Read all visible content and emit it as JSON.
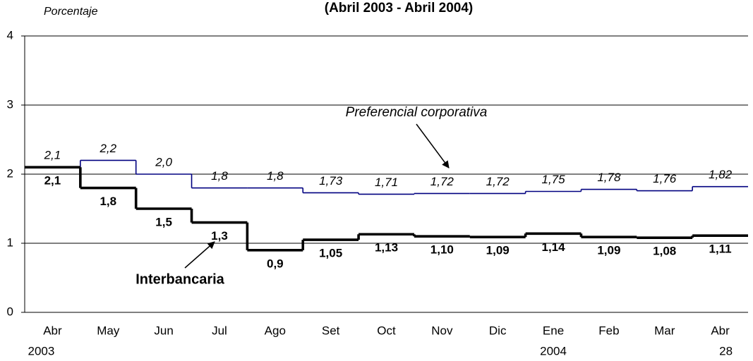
{
  "chart_data": {
    "type": "step-line",
    "title": "(Abril 2003 - Abril 2004)",
    "y_label": "Porcentaje",
    "categories": [
      "Abr",
      "May",
      "Jun",
      "Jul",
      "Ago",
      "Set",
      "Oct",
      "Nov",
      "Dic",
      "Ene",
      "Feb",
      "Mar",
      "Abr"
    ],
    "category_sublabels": [
      "2003",
      null,
      null,
      null,
      null,
      null,
      null,
      null,
      null,
      "2004",
      null,
      null,
      "28"
    ],
    "ylim": [
      0,
      4
    ],
    "yticks": [
      0,
      1,
      2,
      3,
      4
    ],
    "grid": true,
    "series": [
      {
        "name": "Preferencial corporativa",
        "color": "#000080",
        "values": [
          2.1,
          2.2,
          2.0,
          1.8,
          1.8,
          1.73,
          1.71,
          1.72,
          1.72,
          1.75,
          1.78,
          1.76,
          1.82
        ],
        "value_labels": [
          "2,1",
          "2,2",
          "2,0",
          "1,8",
          "1,8",
          "1,73",
          "1,71",
          "1,72",
          "1,72",
          "1,75",
          "1,78",
          "1,76",
          "1,82"
        ]
      },
      {
        "name": "Interbancaria",
        "color": "#000000",
        "values": [
          2.1,
          1.8,
          1.5,
          1.3,
          0.9,
          1.05,
          1.13,
          1.1,
          1.09,
          1.14,
          1.09,
          1.08,
          1.11
        ],
        "value_labels": [
          "2,1",
          "1,8",
          "1,5",
          "1,3",
          "0,9",
          "1,05",
          "1,13",
          "1,10",
          "1,09",
          "1,14",
          "1,09",
          "1,08",
          "1,11"
        ]
      }
    ]
  }
}
